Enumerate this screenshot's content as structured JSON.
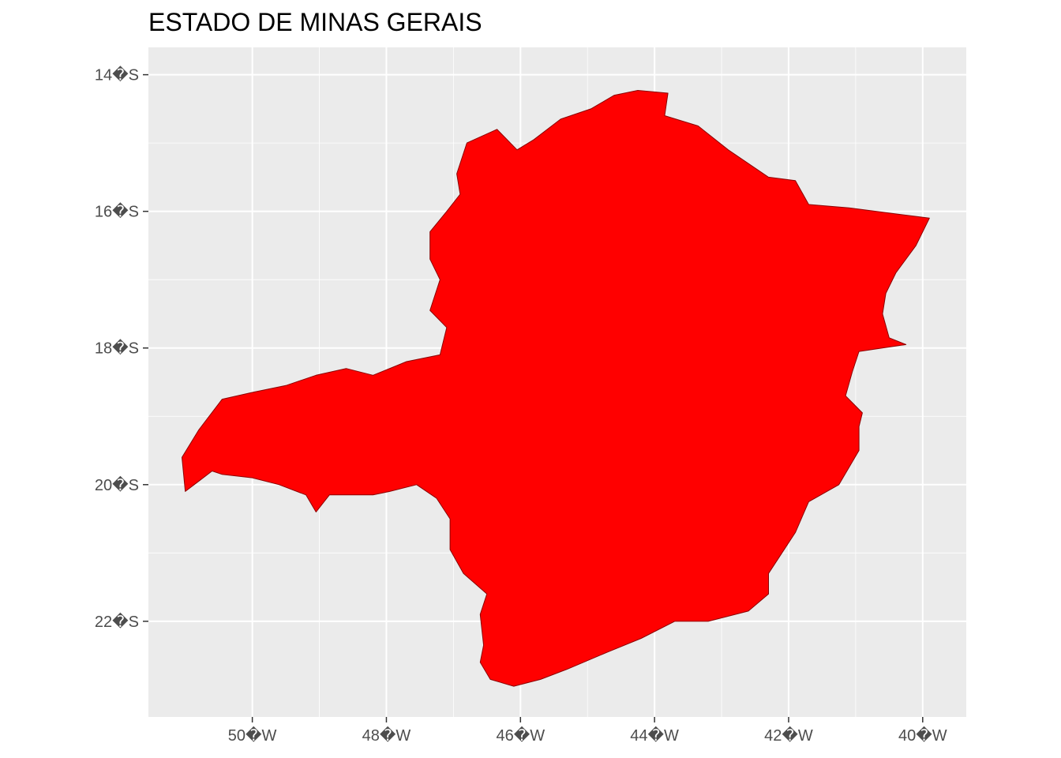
{
  "title": "ESTADO DE MINAS GERAIS",
  "colors": {
    "panel_background": "#ebebeb",
    "grid": "#ffffff",
    "region_fill": "#ff0000",
    "region_stroke": "#8b0000",
    "axis_text": "#4d4d4d"
  },
  "map": {
    "region_name": "MINAS GERAIS",
    "projection": "longitude-latitude",
    "lon_range": [
      -51.55,
      -39.35
    ],
    "lat_range": [
      -23.4,
      -13.6
    ],
    "grid": true,
    "boundary": [
      [
        -44.25,
        -14.23
      ],
      [
        -43.8,
        -14.27
      ],
      [
        -43.85,
        -14.6
      ],
      [
        -43.35,
        -14.75
      ],
      [
        -42.9,
        -15.1
      ],
      [
        -42.3,
        -15.5
      ],
      [
        -41.9,
        -15.55
      ],
      [
        -41.7,
        -15.9
      ],
      [
        -41.1,
        -15.95
      ],
      [
        -40.3,
        -16.05
      ],
      [
        -39.9,
        -16.1
      ],
      [
        -40.1,
        -16.5
      ],
      [
        -40.4,
        -16.9
      ],
      [
        -40.55,
        -17.2
      ],
      [
        -40.6,
        -17.5
      ],
      [
        -40.5,
        -17.85
      ],
      [
        -40.25,
        -17.95
      ],
      [
        -40.95,
        -18.05
      ],
      [
        -41.05,
        -18.35
      ],
      [
        -41.15,
        -18.7
      ],
      [
        -40.9,
        -18.95
      ],
      [
        -40.95,
        -19.15
      ],
      [
        -40.95,
        -19.5
      ],
      [
        -41.25,
        -20.0
      ],
      [
        -41.7,
        -20.25
      ],
      [
        -41.9,
        -20.7
      ],
      [
        -42.1,
        -21.0
      ],
      [
        -42.3,
        -21.3
      ],
      [
        -42.3,
        -21.6
      ],
      [
        -42.6,
        -21.85
      ],
      [
        -43.2,
        -22.0
      ],
      [
        -43.7,
        -22.0
      ],
      [
        -44.2,
        -22.25
      ],
      [
        -44.7,
        -22.45
      ],
      [
        -45.3,
        -22.7
      ],
      [
        -45.7,
        -22.85
      ],
      [
        -46.1,
        -22.95
      ],
      [
        -46.45,
        -22.85
      ],
      [
        -46.6,
        -22.6
      ],
      [
        -46.55,
        -22.35
      ],
      [
        -46.6,
        -21.9
      ],
      [
        -46.5,
        -21.6
      ],
      [
        -46.85,
        -21.3
      ],
      [
        -47.05,
        -20.95
      ],
      [
        -47.05,
        -20.5
      ],
      [
        -47.25,
        -20.2
      ],
      [
        -47.55,
        -20.0
      ],
      [
        -47.95,
        -20.1
      ],
      [
        -48.2,
        -20.15
      ],
      [
        -48.85,
        -20.15
      ],
      [
        -49.05,
        -20.4
      ],
      [
        -49.2,
        -20.15
      ],
      [
        -49.6,
        -20.0
      ],
      [
        -50.0,
        -19.9
      ],
      [
        -50.45,
        -19.85
      ],
      [
        -50.6,
        -19.8
      ],
      [
        -51.0,
        -20.1
      ],
      [
        -51.05,
        -19.6
      ],
      [
        -50.8,
        -19.2
      ],
      [
        -50.45,
        -18.75
      ],
      [
        -50.0,
        -18.65
      ],
      [
        -49.5,
        -18.55
      ],
      [
        -49.05,
        -18.4
      ],
      [
        -48.6,
        -18.3
      ],
      [
        -48.2,
        -18.4
      ],
      [
        -47.7,
        -18.2
      ],
      [
        -47.2,
        -18.1
      ],
      [
        -47.1,
        -17.7
      ],
      [
        -47.35,
        -17.45
      ],
      [
        -47.2,
        -17.0
      ],
      [
        -47.35,
        -16.7
      ],
      [
        -47.35,
        -16.3
      ],
      [
        -47.1,
        -16.0
      ],
      [
        -46.9,
        -15.75
      ],
      [
        -46.95,
        -15.45
      ],
      [
        -46.8,
        -15.0
      ],
      [
        -46.35,
        -14.8
      ],
      [
        -46.05,
        -15.1
      ],
      [
        -45.8,
        -14.95
      ],
      [
        -45.4,
        -14.65
      ],
      [
        -44.95,
        -14.5
      ],
      [
        -44.6,
        -14.3
      ]
    ]
  },
  "axes": {
    "x_ticks": [
      {
        "value": -50,
        "label": "50�W"
      },
      {
        "value": -48,
        "label": "48�W"
      },
      {
        "value": -46,
        "label": "46�W"
      },
      {
        "value": -44,
        "label": "44�W"
      },
      {
        "value": -42,
        "label": "42�W"
      },
      {
        "value": -40,
        "label": "40�W"
      }
    ],
    "y_ticks": [
      {
        "value": -14,
        "label": "14�S"
      },
      {
        "value": -16,
        "label": "16�S"
      },
      {
        "value": -18,
        "label": "18�S"
      },
      {
        "value": -20,
        "label": "20�S"
      },
      {
        "value": -22,
        "label": "22�S"
      }
    ]
  }
}
